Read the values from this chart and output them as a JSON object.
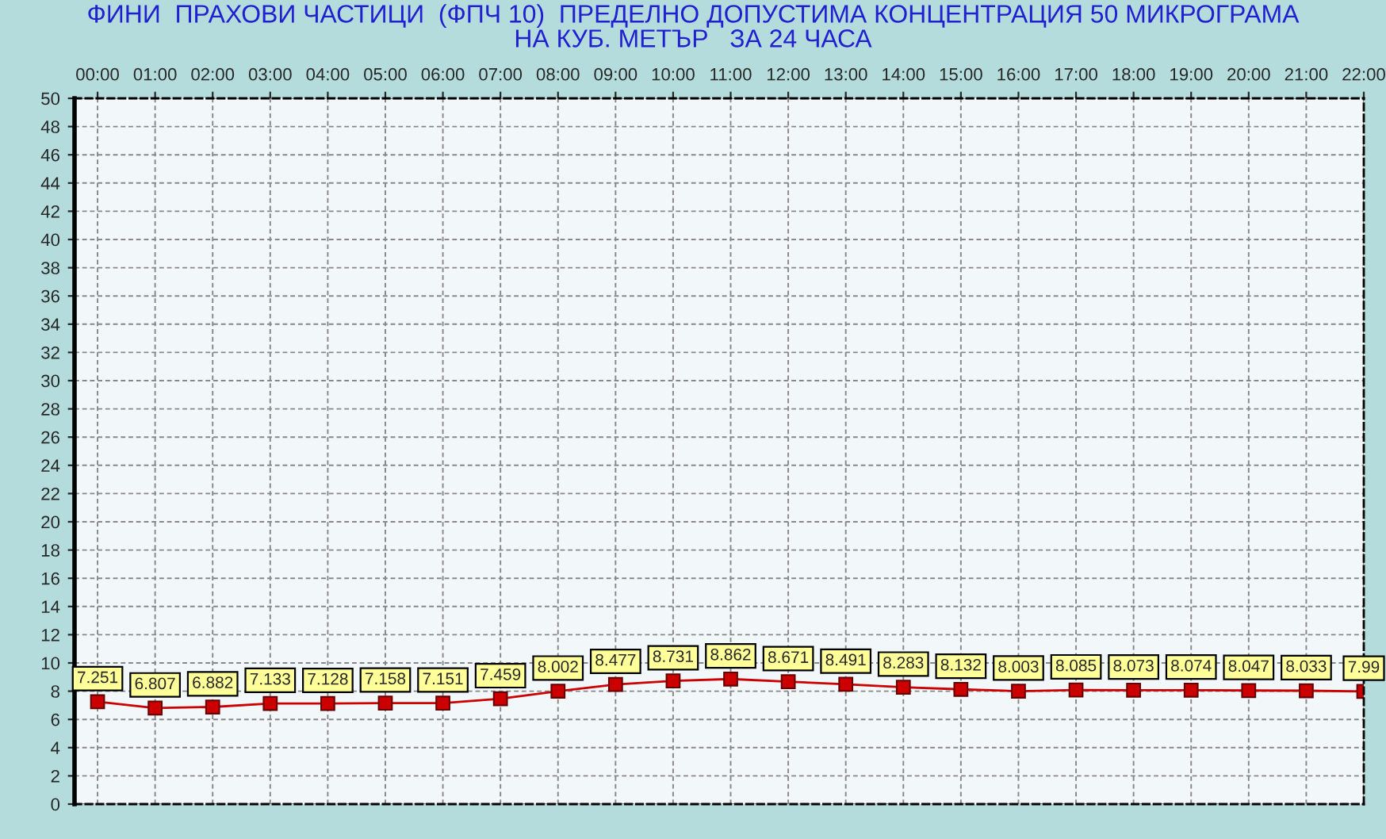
{
  "chart_data": {
    "type": "line",
    "title": "ФИНИ  ПРАХОВИ ЧАСТИЦИ  (ФПЧ 10)  ПРЕДЕЛНО ДОПУСТИМА КОНЦЕНТРАЦИЯ 50 МИКРОГРАМА\nНА КУБ. МЕТЪР   ЗА 24 ЧАСА",
    "categories": [
      "00:00",
      "01:00",
      "02:00",
      "03:00",
      "04:00",
      "05:00",
      "06:00",
      "07:00",
      "08:00",
      "09:00",
      "10:00",
      "11:00",
      "12:00",
      "13:00",
      "14:00",
      "15:00",
      "16:00",
      "17:00",
      "18:00",
      "19:00",
      "20:00",
      "21:00",
      "22:00"
    ],
    "series": [
      {
        "color": "#cc0000",
        "values": [
          7.251,
          6.807,
          6.882,
          7.133,
          7.128,
          7.158,
          7.151,
          7.459,
          8.002,
          8.477,
          8.731,
          8.862,
          8.671,
          8.491,
          8.283,
          8.132,
          8.003,
          8.085,
          8.073,
          8.074,
          8.047,
          8.033,
          7.99
        ]
      }
    ],
    "ylim": [
      0,
      50
    ],
    "yticks": [
      0,
      2,
      4,
      6,
      8,
      10,
      12,
      14,
      16,
      18,
      20,
      22,
      24,
      26,
      28,
      30,
      32,
      34,
      36,
      38,
      40,
      42,
      44,
      46,
      48,
      50
    ],
    "grid": true,
    "marker": "square",
    "line_style": "solid",
    "data_labels": true,
    "legend": false
  }
}
